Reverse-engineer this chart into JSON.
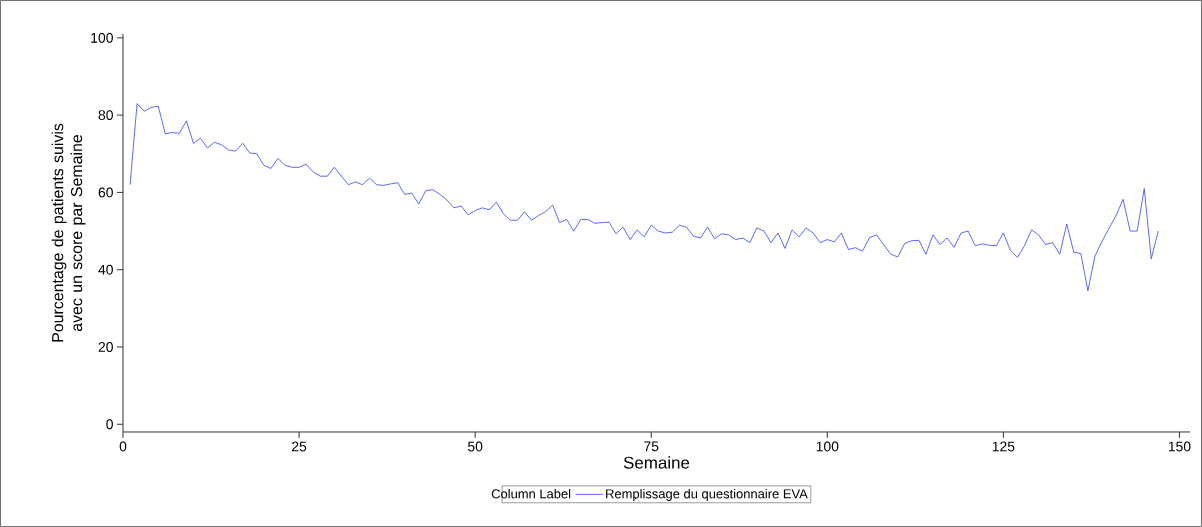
{
  "chart_data": {
    "type": "line",
    "xlabel": "Semaine",
    "ylabel": "Pourcentage de patients suivis avec un score par Semaine",
    "legend_title": "Column Label",
    "legend": "bottom",
    "xlim": [
      0,
      151.5
    ],
    "xticks": [
      0,
      25,
      50,
      75,
      100,
      125,
      150
    ],
    "ylim": [
      -2,
      101
    ],
    "yticks": [
      0,
      20,
      40,
      60,
      80,
      100
    ],
    "grid": false,
    "marker": "none",
    "line_style": "solid",
    "x": [
      1,
      2,
      3,
      4,
      5,
      6,
      7,
      8,
      9,
      10,
      11,
      12,
      13,
      14,
      15,
      16,
      17,
      18,
      19,
      20,
      21,
      22,
      23,
      24,
      25,
      26,
      27,
      28,
      29,
      30,
      31,
      32,
      33,
      34,
      35,
      36,
      37,
      38,
      39,
      40,
      41,
      42,
      43,
      44,
      45,
      46,
      47,
      48,
      49,
      50,
      51,
      52,
      53,
      54,
      55,
      56,
      57,
      58,
      59,
      60,
      61,
      62,
      63,
      64,
      65,
      66,
      67,
      68,
      69,
      70,
      71,
      72,
      73,
      74,
      75,
      76,
      77,
      78,
      79,
      80,
      81,
      82,
      83,
      84,
      85,
      86,
      87,
      88,
      89,
      90,
      91,
      92,
      93,
      94,
      95,
      96,
      97,
      98,
      99,
      100,
      101,
      102,
      103,
      104,
      105,
      106,
      107,
      108,
      109,
      110,
      111,
      112,
      113,
      114,
      115,
      116,
      117,
      118,
      119,
      120,
      121,
      122,
      123,
      124,
      125,
      126,
      127,
      128,
      129,
      130,
      131,
      132,
      133,
      134,
      135,
      136,
      137,
      138,
      139,
      140,
      141,
      142,
      143,
      144,
      145,
      146,
      147
    ],
    "series": [
      {
        "name": "Remplissage du questionnaire EVA",
        "color": "#3344ff",
        "values": [
          62,
          83,
          81,
          82,
          82.3,
          75.2,
          75.5,
          75.3,
          78.5,
          72.7,
          74,
          71.5,
          73,
          72.3,
          71,
          70.7,
          72.7,
          70.2,
          70,
          67,
          66.2,
          68.8,
          67,
          66.5,
          66.5,
          67.3,
          65.3,
          64.2,
          64.2,
          66.5,
          64.2,
          62,
          62.7,
          62,
          63.7,
          62,
          61.8,
          62.2,
          62.5,
          59.5,
          59.8,
          57,
          60.5,
          60.7,
          59.5,
          58,
          56,
          56.5,
          54.2,
          55.3,
          56,
          55.5,
          57.5,
          54.5,
          52.8,
          52.8,
          55,
          52.8,
          54,
          55,
          56.7,
          52.2,
          53,
          50,
          53,
          53,
          52,
          52.2,
          52.3,
          49.3,
          51,
          47.8,
          50.3,
          48.5,
          51.5,
          50,
          49.5,
          49.7,
          51.5,
          51,
          48.7,
          48.2,
          51,
          48,
          49.3,
          49,
          47.8,
          48.2,
          47,
          50.8,
          50,
          47,
          49.5,
          45.5,
          50.3,
          48.5,
          50.8,
          49.5,
          47,
          47.8,
          47.2,
          49.5,
          45.2,
          45.7,
          44.8,
          48.3,
          49,
          46.5,
          44,
          43.3,
          46.8,
          47.5,
          47.6,
          44,
          49,
          46.5,
          48.2,
          45.8,
          49.5,
          50,
          46.2,
          46.7,
          46.3,
          46.2,
          49.5,
          45,
          43.2,
          46.2,
          50.3,
          49,
          46.5,
          47,
          44,
          51.8,
          44.5,
          44.2,
          34.5,
          43.5,
          47.3,
          50.7,
          54,
          58.2,
          50,
          50,
          61,
          42.8,
          50
        ]
      }
    ]
  }
}
